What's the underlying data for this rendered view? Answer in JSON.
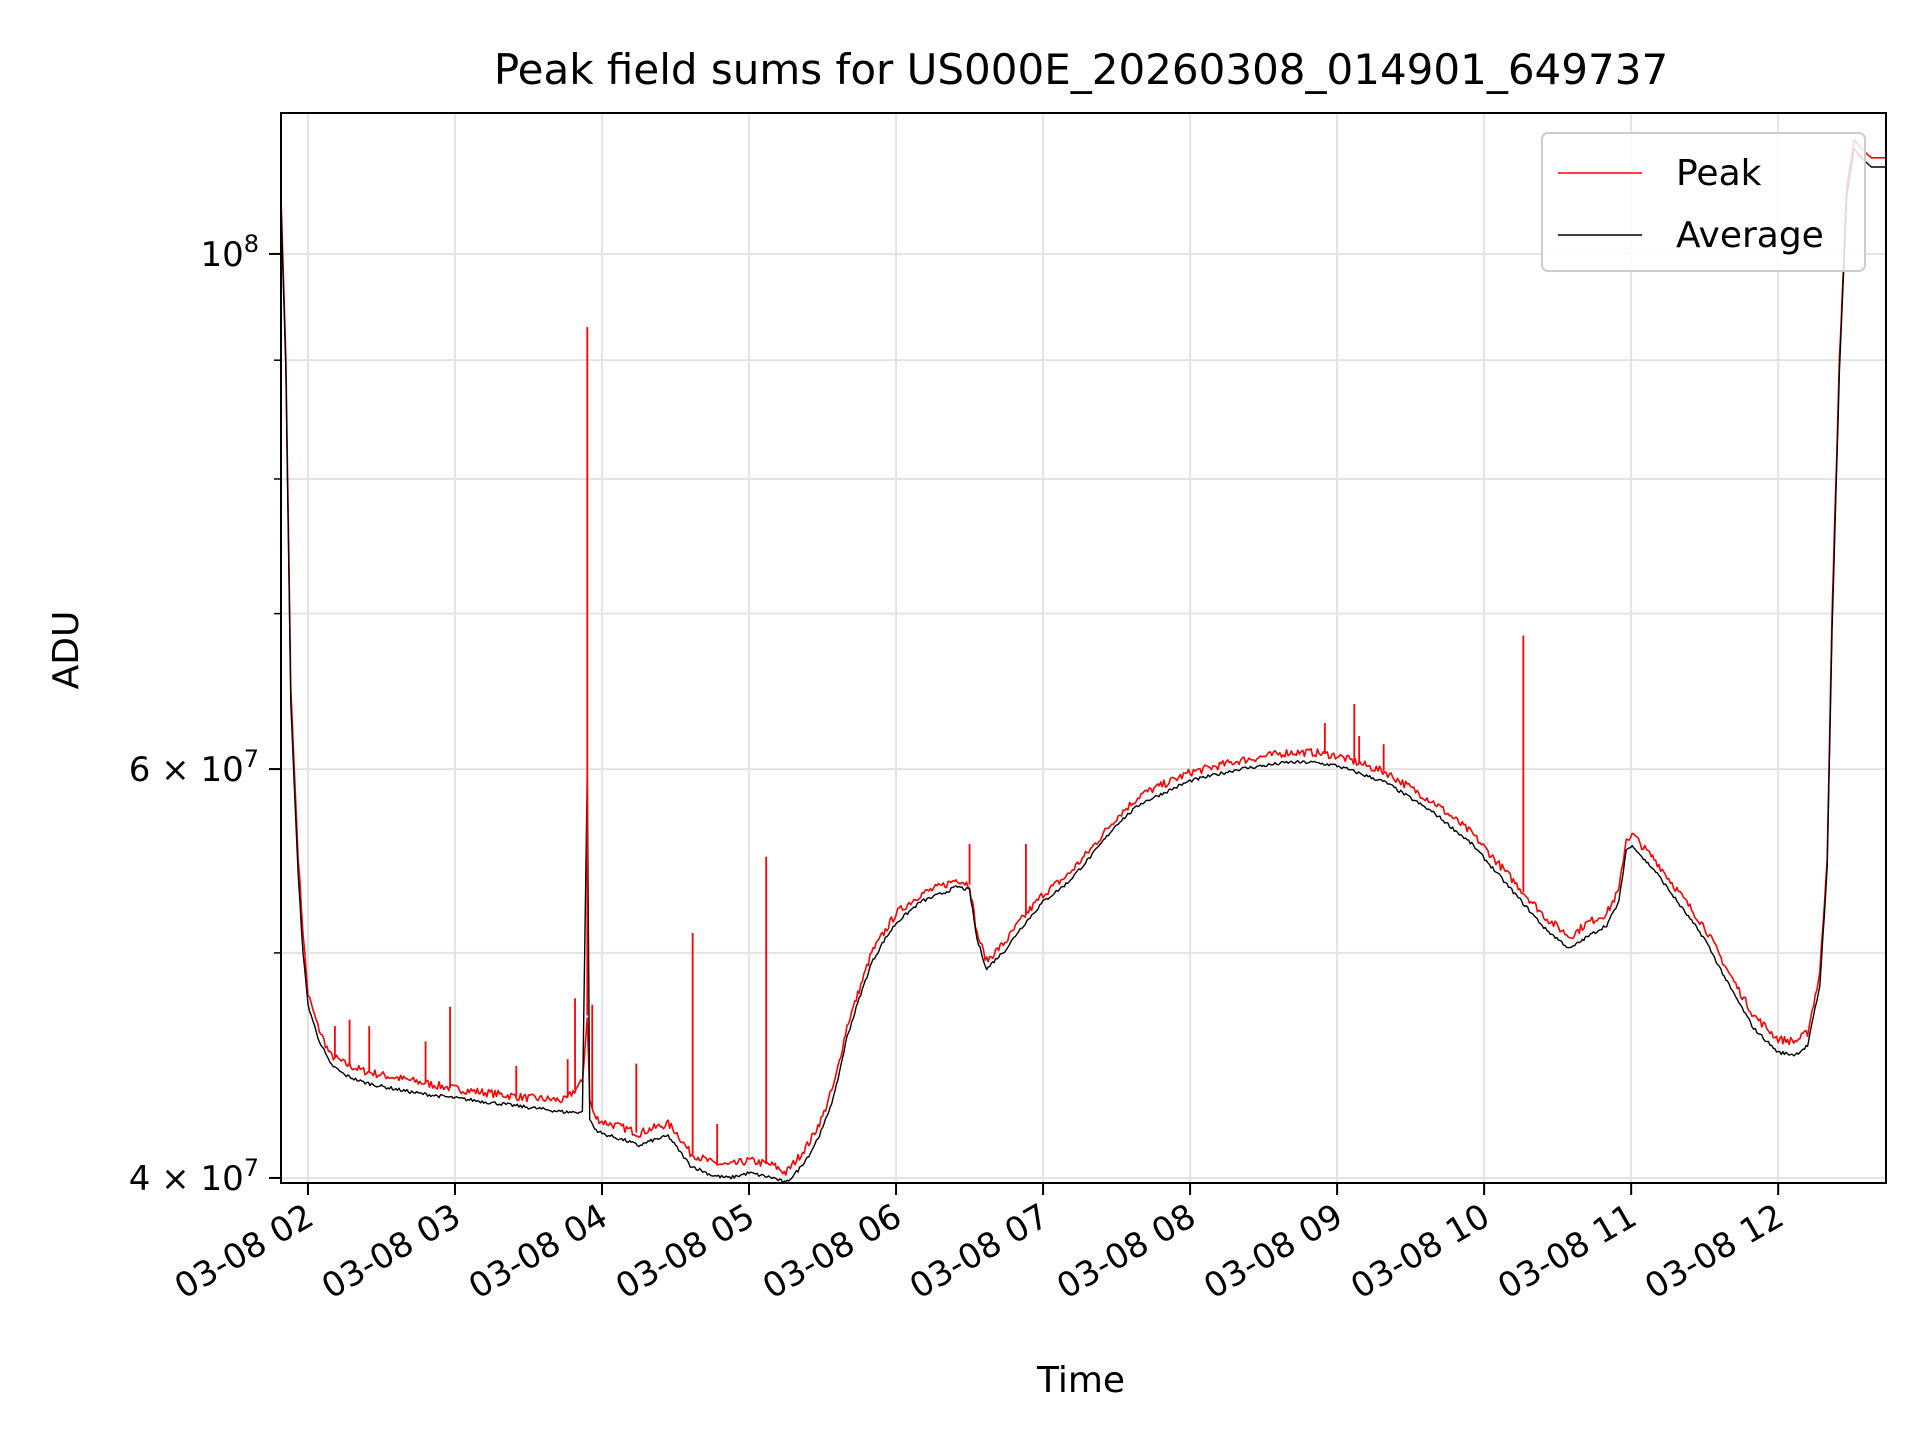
{
  "chart_data": {
    "type": "line",
    "title": "Peak field sums for US000E_20260308_014901_649737",
    "xlabel": "Time",
    "ylabel": "ADU",
    "y_scale": "log",
    "ylim": [
      39800000,
      115000000
    ],
    "xlim": [
      "2026-03-08 01:49",
      "2026-03-08 12:44"
    ],
    "grid": true,
    "legend": "top-right",
    "x_ticks": [
      {
        "t": "2026-03-08 02:00",
        "label": "03-08 02"
      },
      {
        "t": "2026-03-08 03:00",
        "label": "03-08 03"
      },
      {
        "t": "2026-03-08 04:00",
        "label": "03-08 04"
      },
      {
        "t": "2026-03-08 05:00",
        "label": "03-08 05"
      },
      {
        "t": "2026-03-08 06:00",
        "label": "03-08 06"
      },
      {
        "t": "2026-03-08 07:00",
        "label": "03-08 07"
      },
      {
        "t": "2026-03-08 08:00",
        "label": "03-08 08"
      },
      {
        "t": "2026-03-08 09:00",
        "label": "03-08 09"
      },
      {
        "t": "2026-03-08 10:00",
        "label": "03-08 10"
      },
      {
        "t": "2026-03-08 11:00",
        "label": "03-08 11"
      },
      {
        "t": "2026-03-08 12:00",
        "label": "03-08 12"
      }
    ],
    "y_ticks": [
      {
        "v": 40000000,
        "base": "4 × 10",
        "exp": "7"
      },
      {
        "v": 60000000,
        "base": "6 × 10",
        "exp": "7"
      },
      {
        "v": 100000000,
        "base": "10",
        "exp": "8"
      }
    ],
    "y_minor_ticks": [
      50000000,
      70000000,
      80000000,
      90000000
    ],
    "series": [
      {
        "name": "Peak",
        "color": "#ff0000",
        "x": [
          "2026-03-08 01:49",
          "2026-03-08 01:51",
          "2026-03-08 01:53",
          "2026-03-08 01:56",
          "2026-03-08 01:58",
          "2026-03-08 02:00",
          "2026-03-08 02:04",
          "2026-03-08 02:09",
          "2026-03-08 02:15",
          "2026-03-08 02:22",
          "2026-03-08 02:30",
          "2026-03-08 02:45",
          "2026-03-08 03:00",
          "2026-03-08 03:15",
          "2026-03-08 03:30",
          "2026-03-08 03:45",
          "2026-03-08 03:52",
          "2026-03-08 03:54",
          "2026-03-08 03:55",
          "2026-03-08 03:57",
          "2026-03-08 04:00",
          "2026-03-08 04:10",
          "2026-03-08 04:15",
          "2026-03-08 04:20",
          "2026-03-08 04:27",
          "2026-03-08 04:30",
          "2026-03-08 04:36",
          "2026-03-08 04:45",
          "2026-03-08 04:52",
          "2026-03-08 05:00",
          "2026-03-08 05:10",
          "2026-03-08 05:15",
          "2026-03-08 05:20",
          "2026-03-08 05:25",
          "2026-03-08 05:30",
          "2026-03-08 05:35",
          "2026-03-08 05:40",
          "2026-03-08 05:45",
          "2026-03-08 05:50",
          "2026-03-08 05:55",
          "2026-03-08 06:00",
          "2026-03-08 06:10",
          "2026-03-08 06:20",
          "2026-03-08 06:25",
          "2026-03-08 06:30",
          "2026-03-08 06:33",
          "2026-03-08 06:37",
          "2026-03-08 06:40",
          "2026-03-08 06:45",
          "2026-03-08 06:50",
          "2026-03-08 07:00",
          "2026-03-08 07:10",
          "2026-03-08 07:20",
          "2026-03-08 07:30",
          "2026-03-08 07:40",
          "2026-03-08 08:00",
          "2026-03-08 08:20",
          "2026-03-08 08:40",
          "2026-03-08 08:50",
          "2026-03-08 09:00",
          "2026-03-08 09:20",
          "2026-03-08 09:40",
          "2026-03-08 09:55",
          "2026-03-08 10:10",
          "2026-03-08 10:25",
          "2026-03-08 10:35",
          "2026-03-08 10:42",
          "2026-03-08 10:50",
          "2026-03-08 10:55",
          "2026-03-08 10:58",
          "2026-03-08 11:01",
          "2026-03-08 11:05",
          "2026-03-08 11:10",
          "2026-03-08 11:20",
          "2026-03-08 11:30",
          "2026-03-08 11:40",
          "2026-03-08 11:50",
          "2026-03-08 12:00",
          "2026-03-08 12:07",
          "2026-03-08 12:12",
          "2026-03-08 12:17",
          "2026-03-08 12:20",
          "2026-03-08 12:22",
          "2026-03-08 12:25",
          "2026-03-08 12:28",
          "2026-03-08 12:31",
          "2026-03-08 12:34",
          "2026-03-08 12:38",
          "2026-03-08 12:41",
          "2026-03-08 12:44"
        ],
        "y": [
          106000000,
          90000000,
          65000000,
          55000000,
          51000000,
          48000000,
          46500000,
          45200000,
          44800000,
          44500000,
          44300000,
          44000000,
          43700000,
          43500000,
          43300000,
          43200000,
          44000000,
          47000000,
          43200000,
          42500000,
          42300000,
          42000000,
          41800000,
          42000000,
          42200000,
          41900000,
          41000000,
          40600000,
          40500000,
          40700000,
          40500000,
          40200000,
          40800000,
          41500000,
          42500000,
          44000000,
          46500000,
          48200000,
          50000000,
          51000000,
          52000000,
          53000000,
          53500000,
          53800000,
          53500000,
          51000000,
          49600000,
          50000000,
          50600000,
          51500000,
          53000000,
          54000000,
          55500000,
          57200000,
          58500000,
          59800000,
          60500000,
          61000000,
          61000000,
          60800000,
          59800000,
          58000000,
          56300000,
          54000000,
          51800000,
          50800000,
          51500000,
          52000000,
          53200000,
          56000000,
          56200000,
          55500000,
          54800000,
          53000000,
          51300000,
          49000000,
          47000000,
          45900000,
          45800000,
          46200000,
          49000000,
          55000000,
          70000000,
          90000000,
          107000000,
          112000000,
          111000000,
          110000000,
          110000000,
          110000000
        ]
      },
      {
        "name": "Average",
        "color": "#000000",
        "x": [
          "2026-03-08 01:49",
          "2026-03-08 01:51",
          "2026-03-08 01:53",
          "2026-03-08 01:56",
          "2026-03-08 01:58",
          "2026-03-08 02:00",
          "2026-03-08 02:04",
          "2026-03-08 02:09",
          "2026-03-08 02:15",
          "2026-03-08 02:22",
          "2026-03-08 02:30",
          "2026-03-08 02:45",
          "2026-03-08 03:00",
          "2026-03-08 03:15",
          "2026-03-08 03:30",
          "2026-03-08 03:45",
          "2026-03-08 03:52",
          "2026-03-08 03:54",
          "2026-03-08 03:55",
          "2026-03-08 03:57",
          "2026-03-08 04:00",
          "2026-03-08 04:10",
          "2026-03-08 04:15",
          "2026-03-08 04:20",
          "2026-03-08 04:27",
          "2026-03-08 04:30",
          "2026-03-08 04:36",
          "2026-03-08 04:45",
          "2026-03-08 04:52",
          "2026-03-08 05:00",
          "2026-03-08 05:10",
          "2026-03-08 05:15",
          "2026-03-08 05:20",
          "2026-03-08 05:25",
          "2026-03-08 05:30",
          "2026-03-08 05:35",
          "2026-03-08 05:40",
          "2026-03-08 05:45",
          "2026-03-08 05:50",
          "2026-03-08 05:55",
          "2026-03-08 06:00",
          "2026-03-08 06:10",
          "2026-03-08 06:20",
          "2026-03-08 06:25",
          "2026-03-08 06:30",
          "2026-03-08 06:33",
          "2026-03-08 06:37",
          "2026-03-08 06:40",
          "2026-03-08 06:45",
          "2026-03-08 06:50",
          "2026-03-08 07:00",
          "2026-03-08 07:10",
          "2026-03-08 07:20",
          "2026-03-08 07:30",
          "2026-03-08 07:40",
          "2026-03-08 08:00",
          "2026-03-08 08:20",
          "2026-03-08 08:40",
          "2026-03-08 08:50",
          "2026-03-08 09:00",
          "2026-03-08 09:20",
          "2026-03-08 09:40",
          "2026-03-08 09:55",
          "2026-03-08 10:10",
          "2026-03-08 10:25",
          "2026-03-08 10:35",
          "2026-03-08 10:42",
          "2026-03-08 10:50",
          "2026-03-08 10:55",
          "2026-03-08 10:58",
          "2026-03-08 11:01",
          "2026-03-08 11:05",
          "2026-03-08 11:10",
          "2026-03-08 11:20",
          "2026-03-08 11:30",
          "2026-03-08 11:40",
          "2026-03-08 11:50",
          "2026-03-08 12:00",
          "2026-03-08 12:07",
          "2026-03-08 12:12",
          "2026-03-08 12:17",
          "2026-03-08 12:20",
          "2026-03-08 12:22",
          "2026-03-08 12:25",
          "2026-03-08 12:28",
          "2026-03-08 12:31",
          "2026-03-08 12:34",
          "2026-03-08 12:38",
          "2026-03-08 12:41",
          "2026-03-08 12:44"
        ],
        "y": [
          105000000,
          89000000,
          64000000,
          54000000,
          50000000,
          47500000,
          46000000,
          44800000,
          44300000,
          44000000,
          43800000,
          43500000,
          43300000,
          43100000,
          42900000,
          42700000,
          42700000,
          60000000,
          42400000,
          42000000,
          41800000,
          41500000,
          41300000,
          41500000,
          41700000,
          41300000,
          40500000,
          40100000,
          40000000,
          40200000,
          40000000,
          39800000,
          40300000,
          41000000,
          42000000,
          43500000,
          46000000,
          47800000,
          49500000,
          50600000,
          51500000,
          52600000,
          53100000,
          53400000,
          53200000,
          50700000,
          49200000,
          49600000,
          50200000,
          51100000,
          52600000,
          53600000,
          55100000,
          56800000,
          58000000,
          59300000,
          60000000,
          60400000,
          60400000,
          60200000,
          59200000,
          57400000,
          55700000,
          53400000,
          51200000,
          50200000,
          50800000,
          51400000,
          52600000,
          55400000,
          55600000,
          54900000,
          54200000,
          52400000,
          50700000,
          48400000,
          46400000,
          45300000,
          45200000,
          45600000,
          48400000,
          54400000,
          69000000,
          89000000,
          106000000,
          111000000,
          110000000,
          109000000,
          109000000,
          109000000
        ]
      }
    ],
    "spikes": [
      {
        "series": "Peak",
        "x": "2026-03-08 02:11",
        "y": 46500000
      },
      {
        "series": "Peak",
        "x": "2026-03-08 02:17",
        "y": 46800000
      },
      {
        "series": "Peak",
        "x": "2026-03-08 02:25",
        "y": 46500000
      },
      {
        "series": "Peak",
        "x": "2026-03-08 02:48",
        "y": 45800000
      },
      {
        "series": "Peak",
        "x": "2026-03-08 02:58",
        "y": 47400000
      },
      {
        "series": "Peak",
        "x": "2026-03-08 03:25",
        "y": 44700000
      },
      {
        "series": "Peak",
        "x": "2026-03-08 03:46",
        "y": 45000000
      },
      {
        "series": "Peak",
        "x": "2026-03-08 03:49",
        "y": 47800000
      },
      {
        "series": "Peak",
        "x": "2026-03-08 03:54",
        "y": 93000000
      },
      {
        "series": "Peak",
        "x": "2026-03-08 03:56",
        "y": 47500000
      },
      {
        "series": "Peak",
        "x": "2026-03-08 04:14",
        "y": 44800000
      },
      {
        "series": "Peak",
        "x": "2026-03-08 04:37",
        "y": 51000000
      },
      {
        "series": "Peak",
        "x": "2026-03-08 04:47",
        "y": 42200000
      },
      {
        "series": "Peak",
        "x": "2026-03-08 05:07",
        "y": 55000000
      },
      {
        "series": "Peak",
        "x": "2026-03-08 06:30",
        "y": 55700000
      },
      {
        "series": "Peak",
        "x": "2026-03-08 06:53",
        "y": 55700000
      },
      {
        "series": "Peak",
        "x": "2026-03-08 08:55",
        "y": 62800000
      },
      {
        "series": "Peak",
        "x": "2026-03-08 09:07",
        "y": 64000000
      },
      {
        "series": "Peak",
        "x": "2026-03-08 09:09",
        "y": 62000000
      },
      {
        "series": "Peak",
        "x": "2026-03-08 09:19",
        "y": 61500000
      },
      {
        "series": "Peak",
        "x": "2026-03-08 10:16",
        "y": 68500000
      }
    ]
  }
}
